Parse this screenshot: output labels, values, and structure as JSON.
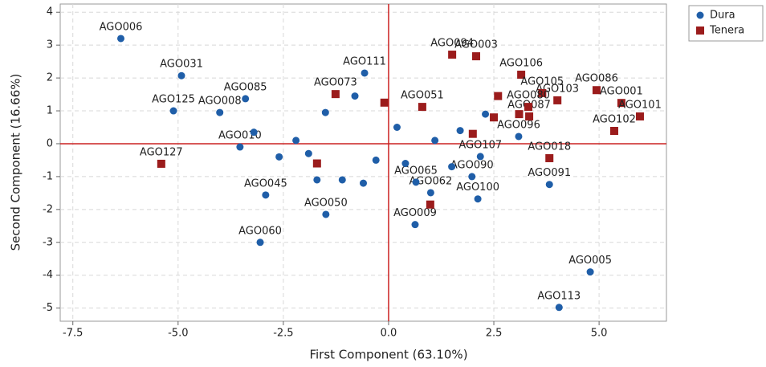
{
  "chart_data": {
    "type": "scatter",
    "x_label": "First Component (63.10%)",
    "y_label": "Second Component (16.66%)",
    "xlim": [
      -7.8,
      6.6
    ],
    "ylim": [
      -5.4,
      4.25
    ],
    "xticks": [
      -7.5,
      {
        "value": -5,
        "label": "-5.0"
      },
      -2.5,
      {
        "value": 0,
        "label": "0.0"
      },
      2.5,
      {
        "value": 5,
        "label": "5.0"
      }
    ],
    "yticks": [
      4,
      3,
      2,
      1,
      0,
      -1,
      -2,
      -3,
      -4,
      -5
    ],
    "grid": true,
    "legend": "outside-top-right",
    "series": [
      {
        "name": "Dura",
        "color": "#1f5ea8",
        "x": [
          -6.36,
          -4.92,
          -3.4,
          -5.11,
          -4.01,
          4.79,
          4.05,
          -3.05,
          -1.49,
          0.63,
          2.12,
          3.82,
          -2.92,
          -0.57,
          -3.53,
          1.98,
          1.0,
          0.65,
          3.09,
          2.18,
          -0.8,
          -1.5,
          -2.2,
          -1.9,
          -0.3,
          0.2,
          -1.1,
          -2.6,
          1.1,
          1.7,
          2.3,
          -0.6,
          -1.7,
          0.4,
          -3.2,
          1.5
        ],
        "y": [
          3.2,
          2.07,
          1.37,
          1.0,
          0.95,
          -3.9,
          -4.98,
          -3.0,
          -2.15,
          -2.46,
          -1.68,
          -1.24,
          -1.56,
          2.15,
          -0.1,
          -1.0,
          -1.49,
          -1.17,
          0.22,
          -0.39,
          1.45,
          0.95,
          0.1,
          -0.3,
          -0.5,
          0.5,
          -1.1,
          -0.4,
          0.1,
          0.4,
          0.9,
          -1.2,
          -1.1,
          -0.6,
          0.35,
          -0.7
        ],
        "labels": [
          "AGO006",
          "AGO031",
          "AGO085",
          "AGO125",
          "AGO008",
          "AGO005",
          "AGO113",
          "AGO060",
          "AGO050",
          "AGO009",
          "AGO100",
          "AGO091",
          "AGO045",
          "AGO111",
          "AGO010",
          "AGO090",
          "AGO062",
          "AGO065",
          "AGO096",
          "AGO107",
          null,
          null,
          null,
          null,
          null,
          null,
          null,
          null,
          null,
          null,
          null,
          null,
          null,
          null,
          null,
          null
        ]
      },
      {
        "name": "Tenera",
        "color": "#9b1c1c",
        "x": [
          1.51,
          2.08,
          3.15,
          4.94,
          5.53,
          5.97,
          5.36,
          4.01,
          3.34,
          3.82,
          -5.4,
          0.8,
          3.65,
          3.32,
          -1.26,
          0.99,
          2.6,
          2.0,
          -0.1,
          -1.7,
          3.1,
          2.5
        ],
        "y": [
          2.71,
          2.66,
          2.1,
          1.63,
          1.24,
          0.83,
          0.39,
          1.32,
          0.83,
          -0.44,
          -0.61,
          1.12,
          1.54,
          1.12,
          1.51,
          -1.85,
          1.45,
          0.3,
          1.25,
          -0.6,
          0.9,
          0.8
        ],
        "labels": [
          "AGO094",
          "AGO003",
          "AGO106",
          "AGO086",
          "AGO001",
          "AGO101",
          "AGO102",
          "AGO103",
          "AGO087",
          "AGO018",
          "AGO127",
          "AGO051",
          "AGO105",
          "AGO080",
          "AGO073",
          null,
          null,
          null,
          null,
          null,
          null,
          null
        ]
      }
    ]
  }
}
